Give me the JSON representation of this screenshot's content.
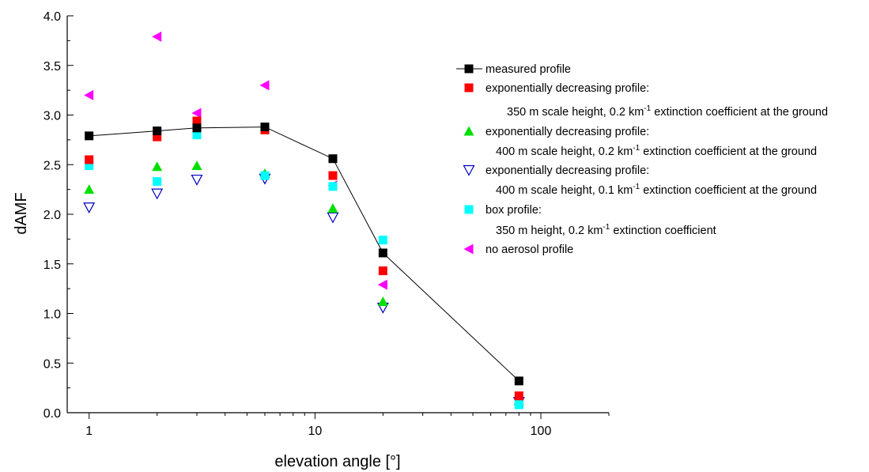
{
  "chart_data": {
    "type": "scatter",
    "xscale": "log",
    "xlim": [
      0.8,
      200
    ],
    "ylim": [
      0,
      4
    ],
    "xlabel": "elevation angle [°]",
    "ylabel": "dAMF",
    "x_ticks": [
      "1",
      "10",
      "100"
    ],
    "y_ticks": [
      "0.0",
      "0.5",
      "1.0",
      "1.5",
      "2.0",
      "2.5",
      "3.0",
      "3.5",
      "4.0"
    ],
    "grid": false,
    "legend_position": "right",
    "series": [
      {
        "key": "measured",
        "legend": [
          "measured profile"
        ],
        "marker": "square-line",
        "color": "#000000",
        "points": [
          [
            1,
            2.79
          ],
          [
            2,
            2.84
          ],
          [
            3,
            2.87
          ],
          [
            6,
            2.88
          ],
          [
            12,
            2.56
          ],
          [
            20,
            1.61
          ],
          [
            80,
            0.32
          ]
        ]
      },
      {
        "key": "exp350",
        "legend": [
          "exponentially decreasing profile:",
          "350 m scale height, 0.2 km",
          "-1",
          " extinction coefficient at the ground"
        ],
        "marker": "square",
        "color": "#ff0000",
        "points": [
          [
            1,
            2.55
          ],
          [
            2,
            2.78
          ],
          [
            3,
            2.94
          ],
          [
            6,
            2.85
          ],
          [
            12,
            2.39
          ],
          [
            20,
            1.43
          ],
          [
            80,
            0.17
          ]
        ]
      },
      {
        "key": "exp400_02",
        "legend": [
          "exponentially decreasing profile:",
          "400 m scale height, 0.2 km",
          "-1",
          " extinction coefficient at the ground"
        ],
        "marker": "triangle-up",
        "color": "#00e000",
        "points": [
          [
            1,
            2.25
          ],
          [
            2,
            2.48
          ],
          [
            3,
            2.49
          ],
          [
            6,
            2.41
          ],
          [
            12,
            2.06
          ],
          [
            20,
            1.12
          ],
          [
            80,
            0.12
          ]
        ]
      },
      {
        "key": "exp400_01",
        "legend": [
          "exponentially decreasing profile:",
          "400 m scale height, 0.1 km",
          "-1",
          " extinction coefficient at the ground"
        ],
        "marker": "triangle-down-open",
        "color": "#0000c0",
        "points": [
          [
            1,
            2.07
          ],
          [
            2,
            2.21
          ],
          [
            3,
            2.35
          ],
          [
            6,
            2.36
          ],
          [
            12,
            1.97
          ],
          [
            20,
            1.06
          ],
          [
            80,
            0.11
          ]
        ]
      },
      {
        "key": "box",
        "legend": [
          "box profile:",
          "350 m height, 0.2 km",
          "-1",
          " extinction coefficient"
        ],
        "marker": "square",
        "color": "#00ffff",
        "points": [
          [
            1,
            2.49
          ],
          [
            2,
            2.33
          ],
          [
            3,
            2.8
          ],
          [
            6,
            2.39
          ],
          [
            12,
            2.28
          ],
          [
            20,
            1.74
          ],
          [
            80,
            0.08
          ]
        ]
      },
      {
        "key": "noaerosol",
        "legend": [
          "no aerosol profile"
        ],
        "marker": "triangle-left",
        "color": "#ff00ff",
        "points": [
          [
            1,
            3.2
          ],
          [
            2,
            3.79
          ],
          [
            3,
            3.02
          ],
          [
            6,
            3.3
          ],
          [
            12,
            2.29
          ],
          [
            20,
            1.29
          ],
          [
            80,
            0.09
          ]
        ]
      }
    ]
  }
}
